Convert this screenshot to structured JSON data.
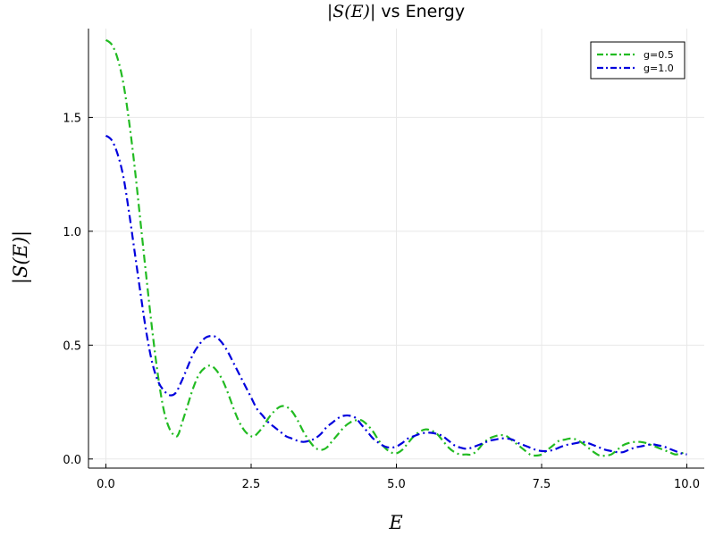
{
  "chart_data": {
    "type": "line",
    "title_math": "|S(E)|",
    "title_text": " vs Energy",
    "xlabel": "E",
    "ylabel": "|S(E)|",
    "xlim": [
      -0.3,
      10.3
    ],
    "ylim": [
      -0.04,
      1.89
    ],
    "xticks": [
      0.0,
      2.5,
      5.0,
      7.5,
      10.0
    ],
    "xtick_labels": [
      "0.0",
      "2.5",
      "5.0",
      "7.5",
      "10.0"
    ],
    "yticks": [
      0.0,
      0.5,
      1.0,
      1.5
    ],
    "ytick_labels": [
      "0.0",
      "0.5",
      "1.0",
      "1.5"
    ],
    "grid": true,
    "legend_position": "top-right",
    "series": [
      {
        "name": "g=0.5",
        "color": "#22bb22",
        "line_style": "dash-dot",
        "x": [
          0.0,
          0.1,
          0.2,
          0.3,
          0.4,
          0.5,
          0.6,
          0.7,
          0.8,
          0.9,
          1.0,
          1.1,
          1.2,
          1.25,
          1.3,
          1.4,
          1.5,
          1.6,
          1.7,
          1.8,
          1.9,
          2.0,
          2.1,
          2.2,
          2.3,
          2.4,
          2.5,
          2.55,
          2.6,
          2.7,
          2.8,
          2.9,
          3.0,
          3.1,
          3.2,
          3.3,
          3.4,
          3.5,
          3.6,
          3.7,
          3.8,
          3.9,
          4.0,
          4.1,
          4.2,
          4.3,
          4.4,
          4.5,
          4.6,
          4.7,
          4.8,
          4.9,
          5.0,
          5.1,
          5.2,
          5.3,
          5.4,
          5.5,
          5.6,
          5.7,
          5.8,
          5.9,
          6.0,
          6.1,
          6.2,
          6.3,
          6.4,
          6.5,
          6.6,
          6.7,
          6.8,
          6.9,
          7.0,
          7.1,
          7.2,
          7.3,
          7.4,
          7.5,
          7.6,
          7.7,
          7.8,
          7.9,
          8.0,
          8.1,
          8.2,
          8.3,
          8.4,
          8.5,
          8.6,
          8.7,
          8.8,
          8.9,
          9.0,
          9.1,
          9.2,
          9.3,
          9.4,
          9.5,
          9.6,
          9.7,
          9.8,
          9.9,
          10.0
        ],
        "y": [
          1.84,
          1.82,
          1.76,
          1.65,
          1.48,
          1.27,
          1.03,
          0.79,
          0.56,
          0.36,
          0.21,
          0.13,
          0.1,
          0.11,
          0.15,
          0.23,
          0.31,
          0.37,
          0.4,
          0.41,
          0.39,
          0.35,
          0.29,
          0.22,
          0.16,
          0.12,
          0.1,
          0.1,
          0.11,
          0.14,
          0.18,
          0.21,
          0.23,
          0.23,
          0.21,
          0.17,
          0.12,
          0.08,
          0.05,
          0.04,
          0.05,
          0.08,
          0.11,
          0.14,
          0.16,
          0.17,
          0.17,
          0.15,
          0.12,
          0.08,
          0.05,
          0.03,
          0.025,
          0.04,
          0.07,
          0.1,
          0.12,
          0.13,
          0.125,
          0.11,
          0.08,
          0.05,
          0.03,
          0.02,
          0.02,
          0.02,
          0.04,
          0.07,
          0.09,
          0.1,
          0.105,
          0.1,
          0.08,
          0.06,
          0.04,
          0.02,
          0.015,
          0.02,
          0.04,
          0.06,
          0.08,
          0.085,
          0.09,
          0.085,
          0.07,
          0.05,
          0.03,
          0.015,
          0.015,
          0.02,
          0.04,
          0.06,
          0.07,
          0.075,
          0.075,
          0.07,
          0.06,
          0.05,
          0.04,
          0.03,
          0.02,
          0.025,
          0.03
        ]
      },
      {
        "name": "g=1.0",
        "color": "#0000dd",
        "line_style": "dash-dot",
        "x": [
          0.0,
          0.1,
          0.2,
          0.3,
          0.4,
          0.5,
          0.6,
          0.7,
          0.8,
          0.9,
          1.0,
          1.1,
          1.2,
          1.3,
          1.4,
          1.5,
          1.6,
          1.7,
          1.8,
          1.9,
          2.0,
          2.1,
          2.2,
          2.3,
          2.4,
          2.5,
          2.6,
          2.7,
          2.8,
          2.9,
          3.0,
          3.1,
          3.2,
          3.3,
          3.4,
          3.5,
          3.6,
          3.7,
          3.8,
          3.9,
          4.0,
          4.1,
          4.2,
          4.3,
          4.4,
          4.5,
          4.6,
          4.7,
          4.8,
          4.9,
          5.0,
          5.1,
          5.2,
          5.3,
          5.4,
          5.5,
          5.6,
          5.7,
          5.8,
          5.9,
          6.0,
          6.1,
          6.2,
          6.3,
          6.4,
          6.5,
          6.6,
          6.7,
          6.8,
          6.9,
          7.0,
          7.1,
          7.2,
          7.3,
          7.4,
          7.5,
          7.6,
          7.7,
          7.8,
          7.9,
          8.0,
          8.1,
          8.2,
          8.3,
          8.4,
          8.5,
          8.6,
          8.7,
          8.8,
          8.9,
          9.0,
          9.1,
          9.2,
          9.3,
          9.4,
          9.5,
          9.6,
          9.7,
          9.8,
          9.9,
          10.0
        ],
        "y": [
          1.42,
          1.4,
          1.34,
          1.24,
          1.08,
          0.9,
          0.72,
          0.55,
          0.42,
          0.34,
          0.3,
          0.28,
          0.29,
          0.34,
          0.4,
          0.46,
          0.5,
          0.53,
          0.54,
          0.535,
          0.51,
          0.47,
          0.42,
          0.37,
          0.32,
          0.27,
          0.22,
          0.19,
          0.16,
          0.14,
          0.12,
          0.1,
          0.09,
          0.08,
          0.075,
          0.08,
          0.09,
          0.11,
          0.14,
          0.16,
          0.18,
          0.19,
          0.19,
          0.18,
          0.15,
          0.12,
          0.09,
          0.07,
          0.055,
          0.05,
          0.055,
          0.07,
          0.09,
          0.1,
          0.11,
          0.115,
          0.115,
          0.11,
          0.1,
          0.08,
          0.06,
          0.05,
          0.045,
          0.05,
          0.06,
          0.07,
          0.08,
          0.085,
          0.09,
          0.09,
          0.085,
          0.07,
          0.06,
          0.05,
          0.04,
          0.035,
          0.035,
          0.04,
          0.05,
          0.06,
          0.065,
          0.07,
          0.075,
          0.07,
          0.06,
          0.05,
          0.04,
          0.035,
          0.03,
          0.03,
          0.04,
          0.05,
          0.055,
          0.06,
          0.065,
          0.06,
          0.055,
          0.045,
          0.035,
          0.025,
          0.02
        ]
      }
    ]
  }
}
